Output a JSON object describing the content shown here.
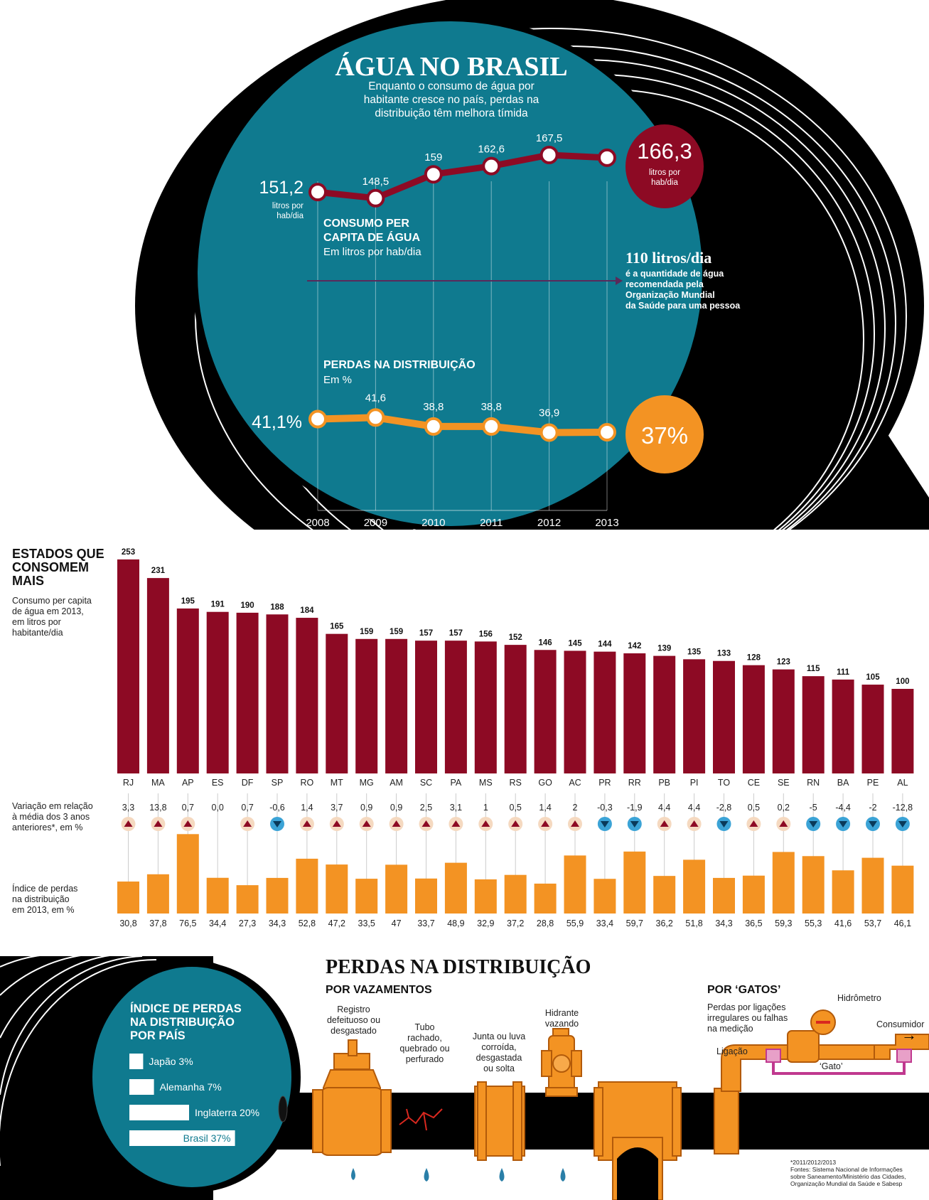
{
  "header": {
    "title": "ÁGUA NO BRASIL",
    "subtitle_lines": [
      "Enquanto o consumo de água por",
      "habitante cresce no país, perdas na",
      "distribuição têm melhora tímida"
    ]
  },
  "consumo_chart": {
    "title_lines": [
      "CONSUMO PER",
      "CAPITA DE ÁGUA"
    ],
    "unit": "Em litros por hab/dia",
    "start_label": "151,2",
    "start_unit_lines": [
      "litros por",
      "hab/dia"
    ],
    "end_label": "166,3",
    "end_unit_lines": [
      "litros por",
      "hab/dia"
    ],
    "reference": {
      "value_label": "110 litros/dia",
      "text_lines": [
        "é a quantidade de água",
        "recomendada pela",
        "Organização Mundial",
        "da Saúde para uma pessoa"
      ]
    }
  },
  "perdas_chart": {
    "title": "PERDAS NA DISTRIBUIÇÃO",
    "unit": "Em %",
    "start_label": "41,1%",
    "end_label": "37%"
  },
  "states_chart": {
    "title_lines": [
      "ESTADOS QUE",
      "CONSOMEM",
      "MAIS"
    ],
    "desc_lines": [
      "Consumo per capita",
      "de água em 2013,",
      "em litros por",
      "habitante/dia"
    ],
    "variation_label_lines": [
      "Variação em relação",
      "à média dos 3 anos",
      "anteriores*, em %"
    ],
    "loss_label_lines": [
      "Índice de perdas",
      "na distribuição",
      "em 2013, em %"
    ]
  },
  "bottom": {
    "title": "PERDAS NA DISTRIBUIÇÃO",
    "vazamentos_title": "POR VAZAMENTOS",
    "leak_labels": [
      [
        "Registro",
        "defeituoso ou",
        "desgastado"
      ],
      [
        "Tubo",
        "rachado,",
        "quebrado ou",
        "perfurado"
      ],
      [
        "Junta ou luva",
        "corroída,",
        "desgastada",
        "ou solta"
      ],
      [
        "Hidrante",
        "vazando"
      ]
    ],
    "gatos_title": "POR ‘GATOS’",
    "gatos_desc_lines": [
      "Perdas por ligações",
      "irregulares ou falhas",
      "na medição"
    ],
    "hidrometro": "Hidrômetro",
    "consumidor": "Consumidor",
    "ligacao": "Ligação",
    "gato": "‘Gato’",
    "countries_title_lines": [
      "ÍNDICE DE PERDAS",
      "NA DISTRIBUIÇÃO",
      "POR PAÍS"
    ],
    "footnote_lines": [
      "*2011/2012/2013",
      "Fontes: Sistema Nacional de Informações",
      "sobre Saneamento/Ministério das Cidades,",
      "Organização Mundial da Saúde e Sabesp"
    ]
  },
  "colors": {
    "teal": "#0f7a8f",
    "dark_red": "#8d0a24",
    "orange": "#f39323",
    "black": "#000000",
    "pale_tri_bg": "#f5d9c0",
    "blue_tri": "#3ba3d6"
  },
  "chart_data": [
    {
      "type": "line",
      "title": "CONSUMO PER CAPITA DE ÁGUA",
      "ylabel": "Em litros por hab/dia",
      "x": [
        "2008",
        "2009",
        "2010",
        "2011",
        "2012",
        "2013"
      ],
      "values": [
        151.2,
        148.5,
        159,
        162.6,
        167.5,
        166.3
      ],
      "labels": [
        "151,2",
        "148,5",
        "159",
        "162,6",
        "167,5",
        "166,3"
      ],
      "reference_line": 110
    },
    {
      "type": "line",
      "title": "PERDAS NA DISTRIBUIÇÃO",
      "ylabel": "Em %",
      "x": [
        "2008",
        "2009",
        "2010",
        "2011",
        "2012",
        "2013"
      ],
      "values": [
        41.1,
        41.6,
        38.8,
        38.8,
        36.9,
        37
      ],
      "labels": [
        "41,1%",
        "41,6",
        "38,8",
        "38,8",
        "36,9",
        "37%"
      ]
    },
    {
      "type": "bar",
      "title": "ESTADOS QUE CONSOMEM MAIS",
      "categories": [
        "RJ",
        "MA",
        "AP",
        "ES",
        "DF",
        "SP",
        "RO",
        "MT",
        "MG",
        "AM",
        "SC",
        "PA",
        "MS",
        "RS",
        "GO",
        "AC",
        "PR",
        "RR",
        "PB",
        "PI",
        "TO",
        "CE",
        "SE",
        "RN",
        "BA",
        "PE",
        "AL"
      ],
      "values": [
        253,
        231,
        195,
        191,
        190,
        188,
        184,
        165,
        159,
        159,
        157,
        157,
        156,
        152,
        146,
        145,
        144,
        142,
        139,
        135,
        133,
        128,
        123,
        115,
        111,
        105,
        100
      ],
      "variation": [
        3.3,
        13.8,
        0.7,
        0.0,
        0.7,
        -0.6,
        1.4,
        3.7,
        0.9,
        0.9,
        2.5,
        3.1,
        1,
        0.5,
        1.4,
        2,
        -0.3,
        -1.9,
        4.4,
        4.4,
        -2.8,
        0.5,
        0.2,
        -5,
        -4.4,
        -2,
        -12.8
      ],
      "variation_labels": [
        "3,3",
        "13,8",
        "0,7",
        "0,0",
        "0,7",
        "-0,6",
        "1,4",
        "3,7",
        "0,9",
        "0,9",
        "2,5",
        "3,1",
        "1",
        "0,5",
        "1,4",
        "2",
        "-0,3",
        "-1,9",
        "4,4",
        "4,4",
        "-2,8",
        "0,5",
        "0,2",
        "-5",
        "-4,4",
        "-2",
        "-12,8"
      ],
      "loss_index": [
        30.8,
        37.8,
        76.5,
        34.4,
        27.3,
        34.3,
        52.8,
        47.2,
        33.5,
        47,
        33.7,
        48.9,
        32.9,
        37.2,
        28.8,
        55.9,
        33.4,
        59.7,
        36.2,
        51.8,
        34.3,
        36.5,
        59.3,
        55.3,
        41.6,
        53.7,
        46.1
      ],
      "loss_labels": [
        "30,8",
        "37,8",
        "76,5",
        "34,4",
        "27,3",
        "34,3",
        "52,8",
        "47,2",
        "33,5",
        "47",
        "33,7",
        "48,9",
        "32,9",
        "37,2",
        "28,8",
        "55,9",
        "33,4",
        "59,7",
        "36,2",
        "51,8",
        "34,3",
        "36,5",
        "59,3",
        "55,3",
        "41,6",
        "53,7",
        "46,1"
      ]
    },
    {
      "type": "bar",
      "title": "ÍNDICE DE PERDAS NA DISTRIBUIÇÃO POR PAÍS",
      "categories": [
        "Japão",
        "Alemanha",
        "Inglaterra",
        "Brasil"
      ],
      "values": [
        3,
        7,
        20,
        37
      ],
      "labels": [
        "Japão 3%",
        "Alemanha 7%",
        "Inglaterra 20%",
        "Brasil 37%"
      ]
    }
  ]
}
